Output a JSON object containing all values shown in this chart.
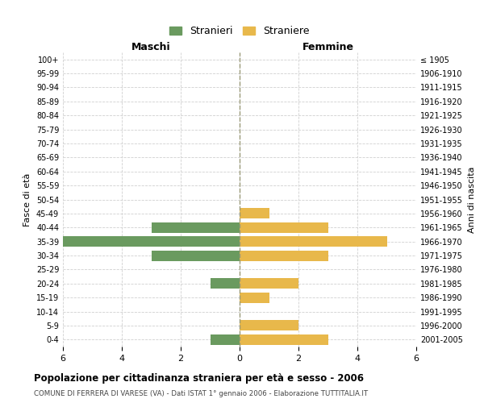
{
  "age_groups": [
    "100+",
    "95-99",
    "90-94",
    "85-89",
    "80-84",
    "75-79",
    "70-74",
    "65-69",
    "60-64",
    "55-59",
    "50-54",
    "45-49",
    "40-44",
    "35-39",
    "30-34",
    "25-29",
    "20-24",
    "15-19",
    "10-14",
    "5-9",
    "0-4"
  ],
  "birth_years": [
    "≤ 1905",
    "1906-1910",
    "1911-1915",
    "1916-1920",
    "1921-1925",
    "1926-1930",
    "1931-1935",
    "1936-1940",
    "1941-1945",
    "1946-1950",
    "1951-1955",
    "1956-1960",
    "1961-1965",
    "1966-1970",
    "1971-1975",
    "1976-1980",
    "1981-1985",
    "1986-1990",
    "1991-1995",
    "1996-2000",
    "2001-2005"
  ],
  "maschi": [
    0,
    0,
    0,
    0,
    0,
    0,
    0,
    0,
    0,
    0,
    0,
    0,
    3,
    6,
    3,
    0,
    1,
    0,
    0,
    0,
    1
  ],
  "femmine": [
    0,
    0,
    0,
    0,
    0,
    0,
    0,
    0,
    0,
    0,
    0,
    1,
    3,
    5,
    3,
    0,
    2,
    1,
    0,
    2,
    3
  ],
  "maschi_color": "#6a9a5f",
  "femmine_color": "#e8b84b",
  "background_color": "#ffffff",
  "grid_color": "#d0d0d0",
  "title": "Popolazione per cittadinanza straniera per età e sesso - 2006",
  "subtitle": "COMUNE DI FERRERA DI VARESE (VA) - Dati ISTAT 1° gennaio 2006 - Elaborazione TUTTITALIA.IT",
  "ylabel_left": "Fasce di età",
  "ylabel_right": "Anni di nascita",
  "xlabel_left": "Maschi",
  "xlabel_right": "Femmine",
  "legend_maschi": "Stranieri",
  "legend_femmine": "Straniere",
  "xlim": 6,
  "bar_height": 0.75
}
